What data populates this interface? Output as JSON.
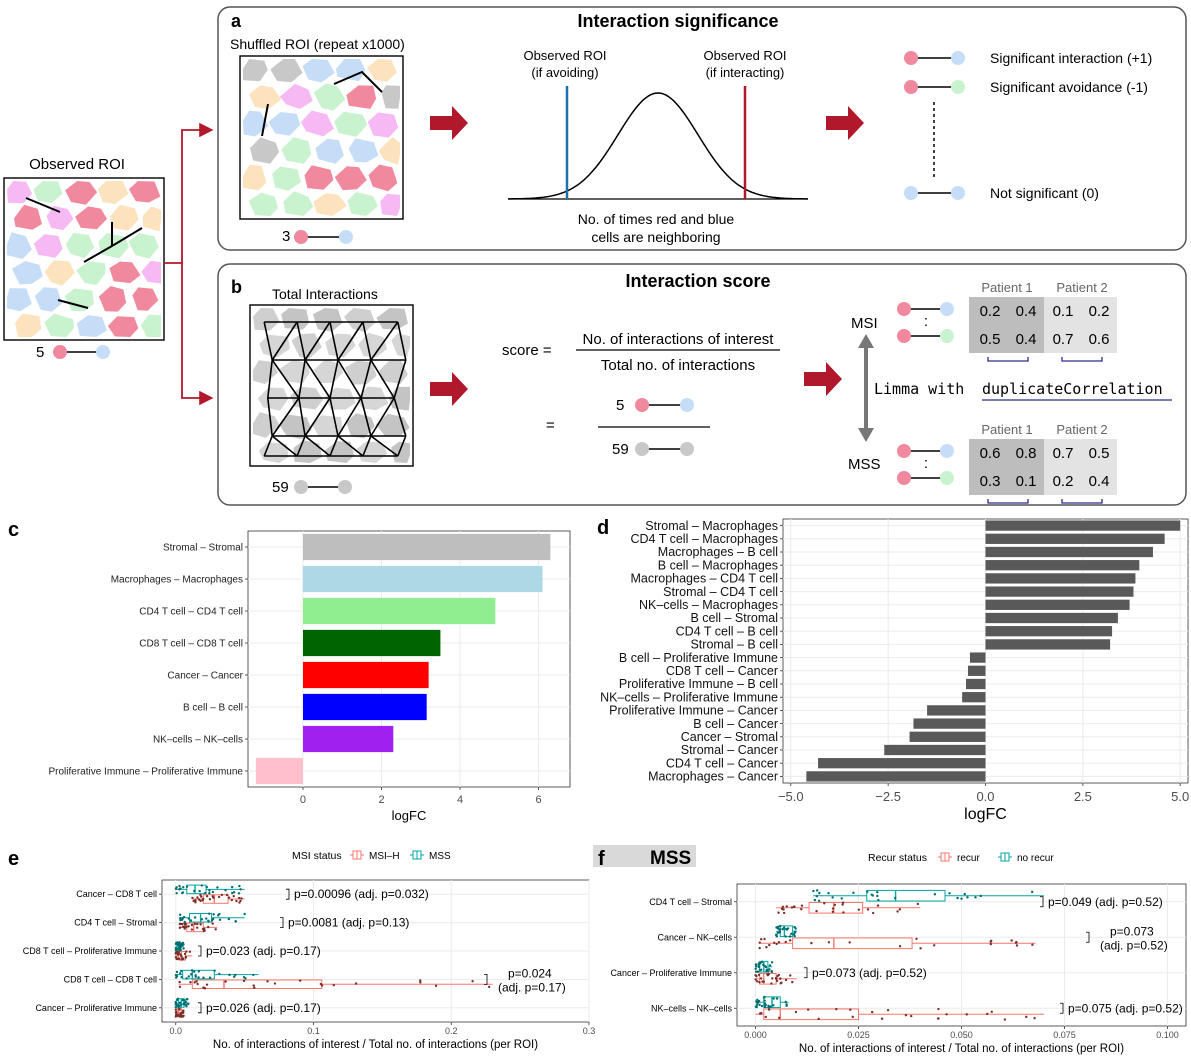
{
  "panel_a": {
    "letter": "a",
    "title": "Interaction significance",
    "shuffled_label": "Shuffled ROI (repeat x1000)",
    "shuffled_count": "3",
    "obs_avoid": [
      "Observed ROI",
      "(if avoiding)"
    ],
    "obs_interact": [
      "Observed ROI",
      "(if interacting)"
    ],
    "dist_caption": [
      "No. of times red and blue",
      "cells are neighboring"
    ],
    "legend": [
      "Significant interaction (+1)",
      "Significant avoidance (-1)",
      "Not significant (0)"
    ]
  },
  "observed": {
    "label": "Observed ROI",
    "count": "5"
  },
  "panel_b": {
    "letter": "b",
    "title": "Interaction score",
    "total_label": "Total Interactions",
    "total_count": "59",
    "score_lhs": "score =",
    "numerator": "No. of interactions of interest",
    "denominator": "Total no. of interactions",
    "eq": "=",
    "frac_num": "5",
    "frac_den": "59",
    "msi": "MSI",
    "mss": "MSS",
    "limma_text": "Limma with ",
    "limma_fn": "duplicateCorrelation",
    "patient1": "Patient 1",
    "patient2": "Patient 2",
    "msi_values": [
      [
        "0.2",
        "0.4",
        "0.1",
        "0.2"
      ],
      [
        "0.5",
        "0.4",
        "0.7",
        "0.6"
      ]
    ],
    "mss_values": [
      [
        "0.6",
        "0.8",
        "0.7",
        "0.5"
      ],
      [
        "0.3",
        "0.1",
        "0.2",
        "0.4"
      ]
    ],
    "dots": ":"
  },
  "panel_c": {
    "letter": "c",
    "chart_data": {
      "type": "bar",
      "orientation": "horizontal",
      "categories": [
        "Stromal – Stromal",
        "Macrophages – Macrophages",
        "CD4 T cell – CD4 T cell",
        "CD8 T cell – CD8 T cell",
        "Cancer – Cancer",
        "B cell – B cell",
        "NK–cells – NK–cells",
        "Proliferative Immune – Proliferative Immune"
      ],
      "values": [
        6.3,
        6.1,
        4.9,
        3.5,
        3.2,
        3.15,
        2.3,
        -1.2
      ],
      "colors": [
        "#bebebe",
        "#add8e6",
        "#90ee90",
        "#006400",
        "#ff0000",
        "#0000ff",
        "#a020f0",
        "#ffc0cb"
      ],
      "xlabel": "logFC",
      "xticks": [
        0,
        2,
        4,
        6
      ],
      "xlim": [
        -1.4,
        6.8
      ],
      "grid": true
    }
  },
  "panel_d": {
    "letter": "d",
    "chart_data": {
      "type": "bar",
      "orientation": "horizontal",
      "categories": [
        "Stromal – Macrophages",
        "CD4 T cell – Macrophages",
        "Macrophages – B cell",
        "B cell – Macrophages",
        "Macrophages – CD4 T cell",
        "Stromal – CD4 T cell",
        "NK–cells – Macrophages",
        "B cell – Stromal",
        "CD4 T cell – B cell",
        "Stromal – B cell",
        "B cell – Proliferative Immune",
        "CD8 T cell – Cancer",
        "Proliferative Immune – B cell",
        "NK–cells – Proliferative Immune",
        "Proliferative Immune – Cancer",
        "B cell – Cancer",
        "Cancer – Stromal",
        "Stromal – Cancer",
        "CD4 T cell – Cancer",
        "Macrophages – Cancer"
      ],
      "values": [
        5.0,
        4.6,
        4.3,
        3.95,
        3.85,
        3.8,
        3.7,
        3.4,
        3.25,
        3.2,
        -0.4,
        -0.45,
        -0.5,
        -0.6,
        -1.5,
        -1.85,
        -1.95,
        -2.6,
        -4.3,
        -4.6
      ],
      "color": "#595959",
      "xlabel": "logFC",
      "xticks": [
        "−5.0",
        "−2.5",
        "0.0",
        "2.5",
        "5.0"
      ],
      "xlim": [
        -5.2,
        5.2
      ],
      "grid": true
    }
  },
  "panel_e": {
    "letter": "e",
    "legend_title": "MSI status",
    "legend": [
      "MSI–H",
      "MSS"
    ],
    "colors": {
      "group1": "#f8766d",
      "group2": "#00a5a5"
    },
    "chart_data": {
      "type": "boxplot",
      "categories": [
        "Cancer – CD8 T cell",
        "CD4 T cell – Stromal",
        "CD8 T cell – Proliferative Immune",
        "CD8 T cell – CD8 T cell",
        "Cancer – Proliferative Immune"
      ],
      "annotations": [
        "p=0.00096 (adj. p=0.032)",
        "p=0.0081 (adj. p=0.13)",
        "p=0.023 (adj. p=0.17)",
        "p=0.024\n(adj. p=0.17)",
        "p=0.026 (adj. p=0.17)"
      ],
      "xticks": [
        "0.0",
        "0.1",
        "0.2",
        "0.3"
      ],
      "xlim": [
        -0.01,
        0.3
      ],
      "xlabel": "No. of interactions of interest / Total no. of interactions (per ROI)",
      "groups": [
        "MSI–H",
        "MSS"
      ],
      "boxes": {
        "MSI–H": [
          [
            0.012,
            0.02,
            0.028,
            0.038,
            0.05
          ],
          [
            0.003,
            0.008,
            0.013,
            0.02,
            0.03
          ],
          [
            0.0,
            0.002,
            0.004,
            0.007,
            0.012
          ],
          [
            0.002,
            0.012,
            0.035,
            0.106,
            0.23
          ],
          [
            0.0,
            0.001,
            0.002,
            0.004,
            0.006
          ]
        ],
        "MSS": [
          [
            0.0,
            0.008,
            0.014,
            0.022,
            0.05
          ],
          [
            0.003,
            0.01,
            0.018,
            0.026,
            0.05
          ],
          [
            0.0,
            0.001,
            0.002,
            0.003,
            0.006
          ],
          [
            0.0,
            0.005,
            0.012,
            0.028,
            0.06
          ],
          [
            0.0,
            0.002,
            0.004,
            0.006,
            0.01
          ]
        ]
      }
    }
  },
  "panel_f": {
    "letter": "f",
    "strip_label": "MSS",
    "legend_title": "Recur status",
    "legend": [
      "recur",
      "no recur"
    ],
    "chart_data": {
      "type": "boxplot",
      "categories": [
        "CD4 T cell – Stromal",
        "Cancer – NK–cells",
        "Cancer – Proliferative Immune",
        "NK–cells – NK–cells"
      ],
      "annotations": [
        "p=0.049 (adj. p=0.52)",
        "p=0.073\n(adj. p=0.52)",
        "p=0.073 (adj. p=0.52)",
        "p=0.075 (adj. p=0.52)"
      ],
      "xticks": [
        "0.000",
        "0.025",
        "0.050",
        "0.075",
        "0.100"
      ],
      "xlim": [
        -0.0045,
        0.1045
      ],
      "xlabel": "No. of interactions of interest / Total no. of interactions (per ROI)",
      "groups": [
        "recur",
        "no recur"
      ],
      "boxes": {
        "recur": [
          [
            0.005,
            0.013,
            0.019,
            0.026,
            0.04
          ],
          [
            0.001,
            0.009,
            0.019,
            0.038,
            0.068
          ],
          [
            0.0,
            0.001,
            0.002,
            0.005,
            0.01
          ],
          [
            0.0,
            0.002,
            0.006,
            0.025,
            0.07
          ]
        ],
        "no recur": [
          [
            0.014,
            0.027,
            0.034,
            0.046,
            0.07
          ],
          [
            0.005,
            0.006,
            0.007,
            0.009,
            0.01
          ],
          [
            0.0,
            0.001,
            0.002,
            0.003,
            0.004
          ],
          [
            0.0,
            0.002,
            0.004,
            0.006,
            0.008
          ]
        ]
      }
    }
  }
}
